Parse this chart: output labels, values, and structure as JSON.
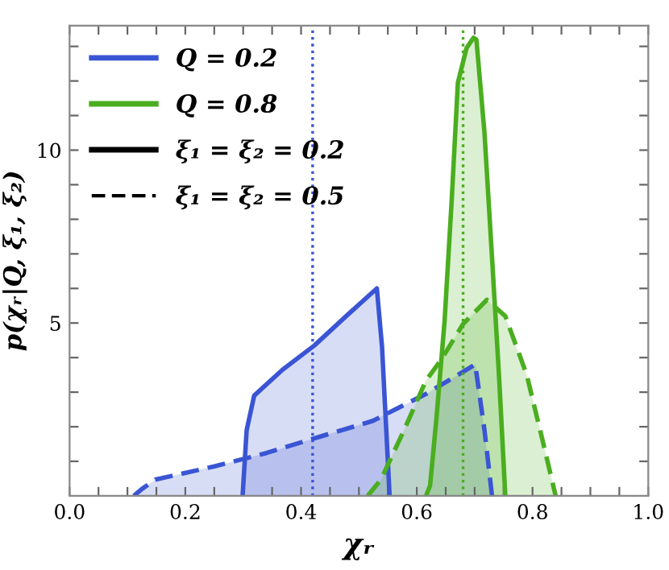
{
  "chart_data": {
    "type": "area",
    "xlabel": "χᵣ",
    "ylabel": "p(χᵣ|Q, ξ₁, ξ₂)",
    "annotations": [
      "Q = 0.2",
      "Q = 0.8",
      "ξ₁ = ξ₂ = 0.2",
      "ξ₁ = ξ₂ = 0.5"
    ],
    "grid": false,
    "series": [
      {
        "color": "#3a55d4",
        "line_style": "solid",
        "x": [
          0.299,
          0.306,
          0.319,
          0.368,
          0.423,
          0.478,
          0.531,
          0.54,
          0.55,
          0.553
        ],
        "values": [
          0,
          1.9,
          2.9,
          3.65,
          4.35,
          5.2,
          6.0,
          4.3,
          1.0,
          0
        ]
      },
      {
        "color": "#3a55d4",
        "line_style": "dashed",
        "x": [
          0.111,
          0.125,
          0.148,
          0.249,
          0.34,
          0.432,
          0.524,
          0.616,
          0.701,
          0.717,
          0.73
        ],
        "values": [
          0,
          0.2,
          0.47,
          0.85,
          1.24,
          1.71,
          2.17,
          2.95,
          3.8,
          1.9,
          0
        ]
      },
      {
        "color": "#4aae1f",
        "line_style": "solid",
        "x": [
          0.616,
          0.623,
          0.634,
          0.648,
          0.66,
          0.671,
          0.686,
          0.698,
          0.703,
          0.717,
          0.73,
          0.742,
          0.753
        ],
        "values": [
          0,
          0.3,
          2.25,
          5.05,
          8.45,
          11.95,
          12.95,
          13.25,
          13.2,
          10.5,
          6.9,
          3.5,
          0
        ]
      },
      {
        "color": "#4aae1f",
        "line_style": "dashed",
        "x": [
          0.515,
          0.538,
          0.579,
          0.616,
          0.643,
          0.68,
          0.721,
          0.753,
          0.79,
          0.817,
          0.84
        ],
        "values": [
          0,
          0.47,
          1.94,
          3.34,
          3.96,
          4.97,
          5.67,
          5.2,
          3.5,
          1.63,
          0
        ]
      }
    ],
    "ref_lines": [
      {
        "axis": "x",
        "value": 0.42,
        "color": "#3a55d4",
        "line_style": "dotted"
      },
      {
        "axis": "x",
        "value": 0.68,
        "color": "#4aae1f",
        "line_style": "dotted"
      }
    ],
    "xlim": [
      0,
      1
    ],
    "ylim": [
      0,
      13.6
    ],
    "xticks": [
      {
        "value": 0,
        "label": "0.0"
      },
      {
        "value": 0.05,
        "label": null
      },
      {
        "value": 0.1,
        "label": null
      },
      {
        "value": 0.15,
        "label": null
      },
      {
        "value": 0.2,
        "label": "0.2"
      },
      {
        "value": 0.25,
        "label": null
      },
      {
        "value": 0.3,
        "label": null
      },
      {
        "value": 0.35,
        "label": null
      },
      {
        "value": 0.4,
        "label": "0.4"
      },
      {
        "value": 0.45,
        "label": null
      },
      {
        "value": 0.5,
        "label": null
      },
      {
        "value": 0.55,
        "label": null
      },
      {
        "value": 0.6,
        "label": "0.6"
      },
      {
        "value": 0.65,
        "label": null
      },
      {
        "value": 0.7,
        "label": null
      },
      {
        "value": 0.75,
        "label": null
      },
      {
        "value": 0.8,
        "label": "0.8"
      },
      {
        "value": 0.85,
        "label": null
      },
      {
        "value": 0.9,
        "label": null
      },
      {
        "value": 0.95,
        "label": null
      },
      {
        "value": 1,
        "label": "1.0"
      }
    ],
    "yticks": [
      {
        "value": 1,
        "label": null
      },
      {
        "value": 2,
        "label": null
      },
      {
        "value": 3,
        "label": null
      },
      {
        "value": 4,
        "label": null
      },
      5,
      {
        "value": 6,
        "label": null
      },
      {
        "value": 7,
        "label": null
      },
      {
        "value": 8,
        "label": null
      },
      {
        "value": 9,
        "label": null
      },
      10,
      {
        "value": 11,
        "label": null
      },
      {
        "value": 12,
        "label": null
      },
      {
        "value": 13,
        "label": null
      }
    ]
  }
}
